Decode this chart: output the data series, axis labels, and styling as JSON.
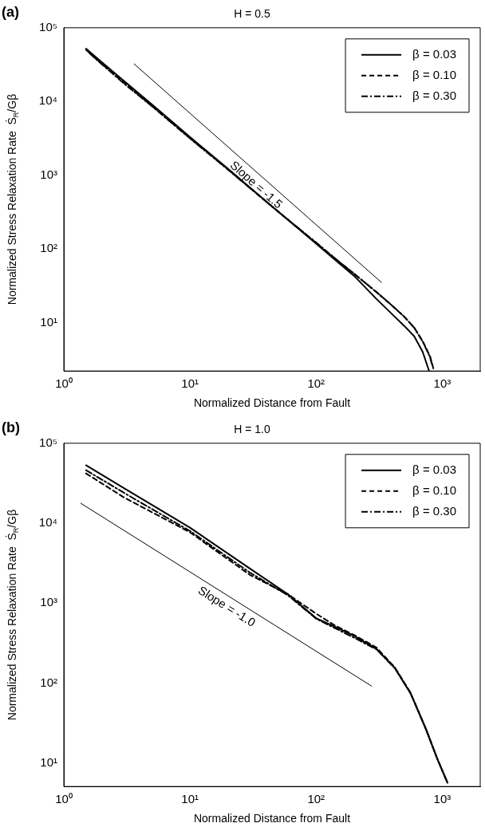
{
  "chart_data": [
    {
      "type": "line",
      "title": "H = 0.5",
      "xlabel": "Normalized Distance from Fault",
      "ylabel": "Normalized Stress Relaxation Rate  Ṡ$_{R}$/Gβ",
      "log": "xy",
      "grid": false,
      "legend": "top right",
      "marker": "none",
      "xlim": [
        1,
        2000
      ],
      "xticks": [
        {
          "value": 1,
          "label": "10⁰"
        },
        {
          "value": 10,
          "label": "10¹"
        },
        {
          "value": 100,
          "label": "10²"
        },
        {
          "value": 1000,
          "label": "10³"
        }
      ],
      "ylim": [
        2.2,
        100000
      ],
      "yticks": [
        {
          "value": 10,
          "label": "10¹"
        },
        {
          "value": 100,
          "label": "10²"
        },
        {
          "value": 1000,
          "label": "10³"
        },
        {
          "value": 10000,
          "label": "10⁴"
        },
        {
          "value": 100000,
          "label": "10⁵"
        }
      ],
      "series": [
        {
          "name": "β = 0.03",
          "color": "#000000",
          "line_style": "solid",
          "x": [
            1.5,
            2,
            3,
            5,
            10,
            20,
            50,
            100,
            150,
            200,
            300,
            400,
            500,
            600,
            700,
            787
          ],
          "values": [
            52000,
            34000,
            19000,
            9100,
            3300,
            1220,
            320,
            118,
            65,
            43,
            21,
            13,
            9,
            6.5,
            4,
            2.2
          ]
        },
        {
          "name": "β = 0.10",
          "color": "#000000",
          "line_style": "dashed",
          "x": [
            1.5,
            2,
            3,
            5,
            10,
            20,
            50,
            100,
            150,
            200,
            300,
            400,
            500,
            600,
            700,
            800,
            861
          ],
          "values": [
            50000,
            32500,
            18000,
            8700,
            3200,
            1200,
            320,
            120,
            68,
            46,
            26,
            17,
            12,
            8.5,
            5.6,
            3.5,
            2.2
          ]
        },
        {
          "name": "β = 0.30",
          "color": "#000000",
          "line_style": "dashdot",
          "x": [
            1.6,
            2,
            3,
            5,
            10,
            20,
            50,
            100,
            150,
            200,
            300,
            400,
            500,
            600,
            700,
            800,
            835
          ],
          "values": [
            45000,
            32000,
            17500,
            8600,
            3150,
            1190,
            320,
            122,
            68,
            46,
            26,
            17,
            12,
            8.5,
            5.5,
            3.4,
            2.6
          ]
        },
        {
          "type": "line",
          "color": "#000000",
          "line_style": "solid",
          "x": [
            3.6,
            330
          ],
          "values": [
            32400,
            35
          ]
        }
      ],
      "annotations": [
        "(a)",
        "Slope = -1.5"
      ]
    },
    {
      "type": "line",
      "title": "H = 1.0",
      "xlabel": "Normalized Distance from Fault",
      "ylabel": "Normalized Stress Relaxation Rate  Ṡ$_{R}$/Gβ",
      "log": "xy",
      "grid": false,
      "legend": "top right",
      "marker": "none",
      "xlim": [
        1,
        2000
      ],
      "xticks": [
        {
          "value": 1,
          "label": "10⁰"
        },
        {
          "value": 10,
          "label": "10¹"
        },
        {
          "value": 100,
          "label": "10²"
        },
        {
          "value": 1000,
          "label": "10³"
        }
      ],
      "ylim": [
        5.1,
        100000
      ],
      "yticks": [
        {
          "value": 10,
          "label": "10¹"
        },
        {
          "value": 100,
          "label": "10²"
        },
        {
          "value": 1000,
          "label": "10³"
        },
        {
          "value": 10000,
          "label": "10⁴"
        },
        {
          "value": 100000,
          "label": "10⁵"
        }
      ],
      "series": [
        {
          "name": "β = 0.03",
          "color": "#000000",
          "line_style": "solid",
          "x": [
            1.5,
            3,
            10,
            30,
            60,
            100,
            140,
            200,
            300,
            420,
            560,
            740,
            920,
            1100
          ],
          "values": [
            53000,
            27500,
            8800,
            2700,
            1290,
            650,
            510,
            390,
            270,
            155,
            75,
            27,
            11,
            5.7
          ]
        },
        {
          "name": "β = 0.10",
          "color": "#000000",
          "line_style": "dashed",
          "x": [
            1.5,
            3,
            10,
            30,
            60,
            100,
            140,
            200,
            300,
            420,
            560,
            740,
            920,
            1100
          ],
          "values": [
            42000,
            21000,
            7700,
            2250,
            1290,
            740,
            530,
            400,
            280,
            158,
            76,
            27,
            11,
            5.7
          ]
        },
        {
          "name": "β = 0.30",
          "color": "#000000",
          "line_style": "dashdot",
          "x": [
            1.5,
            3,
            10,
            30,
            60,
            100,
            140,
            200,
            300,
            420,
            560,
            740,
            920,
            1100
          ],
          "values": [
            46000,
            24000,
            8000,
            2400,
            1250,
            640,
            490,
            370,
            265,
            155,
            75,
            27,
            11,
            5.7
          ]
        },
        {
          "type": "line",
          "color": "#000000",
          "line_style": "solid",
          "x": [
            1.36,
            275
          ],
          "values": [
            17800,
            92
          ]
        }
      ],
      "annotations": [
        "(b)",
        "Slope = -1.0"
      ]
    }
  ]
}
